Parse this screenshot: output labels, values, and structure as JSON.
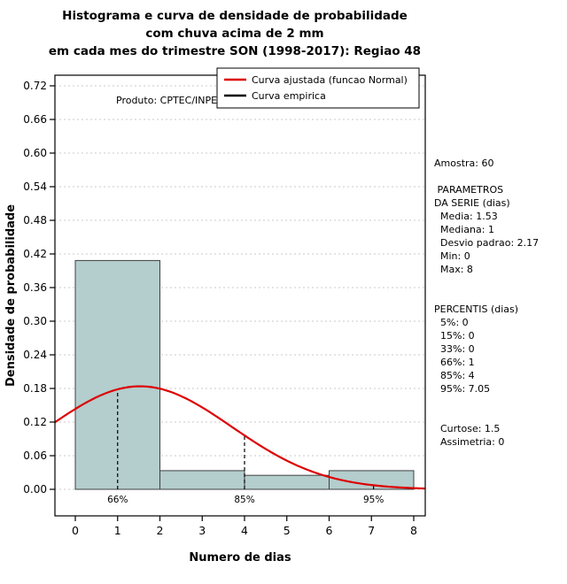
{
  "chart_data": {
    "type": "bar",
    "subtype": "histogram-with-density-curve",
    "title_lines": [
      "Histograma e curva de densidade de probabilidade",
      "com chuva acima de 2 mm",
      "em cada mes do trimestre SON (1998-2017): Regiao 48"
    ],
    "xlabel": "Numero de dias",
    "ylabel": "Densidade de probabilidade",
    "watermark": "Produto: CPTEC/INPE",
    "x_ticks": [
      0,
      1,
      2,
      3,
      4,
      5,
      6,
      7,
      8
    ],
    "y_ticks": [
      0.0,
      0.06,
      0.12,
      0.18,
      0.24,
      0.3,
      0.36,
      0.42,
      0.48,
      0.54,
      0.6,
      0.66,
      0.72
    ],
    "xlim": [
      -0.48,
      8.27
    ],
    "ylim": [
      -0.047,
      0.739
    ],
    "grid": {
      "horizontal": true,
      "vertical": false,
      "color": "#c8c8c8"
    },
    "histogram": {
      "breaks": [
        0,
        2,
        4,
        6,
        8
      ],
      "densities": [
        0.4083,
        0.0333,
        0.025,
        0.0333
      ],
      "fill": "#b4cdcd",
      "border": "#404040"
    },
    "normal_curve": {
      "mean": 1.53,
      "sd": 2.17,
      "color": "#dd0000"
    },
    "percentile_markers": [
      {
        "x": 1,
        "label": "66%"
      },
      {
        "x": 4,
        "label": "85%"
      },
      {
        "x": 7.05,
        "label": "95%"
      }
    ],
    "legend": [
      {
        "label": "Curva ajustada (funcao Normal)",
        "color": "#dd0000"
      },
      {
        "label": "Curva empirica",
        "color": "#000000"
      }
    ]
  },
  "annotations": {
    "lines": [
      "Amostra: 60",
      "",
      " PARAMETROS",
      "DA SERIE (dias)",
      "  Media: 1.53",
      "  Mediana: 1",
      "  Desvio padrao: 2.17",
      "  Min: 0",
      "  Max: 8",
      "",
      "",
      "PERCENTIS (dias)",
      "  5%: 0",
      "  15%: 0",
      "  33%: 0",
      "  66%: 1",
      "  85%: 4",
      "  95%: 7.05",
      "",
      "",
      "  Curtose: 1.5",
      "  Assimetria: 0"
    ]
  }
}
